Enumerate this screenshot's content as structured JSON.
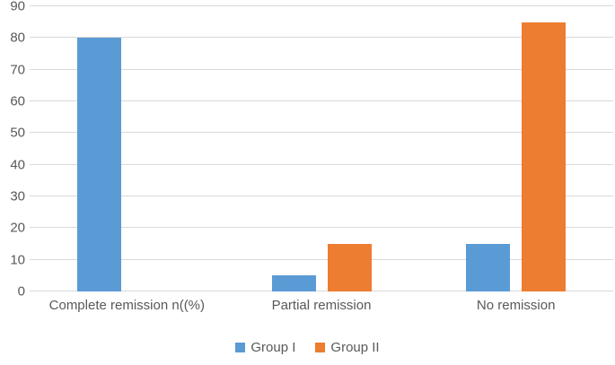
{
  "chart_data": {
    "type": "bar",
    "title": "",
    "xlabel": "",
    "ylabel": "",
    "categories": [
      "Complete remission n((%)",
      "Partial remission",
      "No remission"
    ],
    "series": [
      {
        "name": "Group I",
        "color": "#5B9BD5",
        "values": [
          80,
          5,
          15
        ]
      },
      {
        "name": "Group II",
        "color": "#ED7D31",
        "values": [
          0,
          15,
          85
        ]
      }
    ],
    "ylim": [
      0,
      90
    ],
    "ytick_interval": 10,
    "ytick_labels": [
      "0",
      "10",
      "20",
      "30",
      "40",
      "50",
      "60",
      "70",
      "80",
      "90"
    ],
    "grid": true,
    "gridline_color": "#D9D9D9",
    "axis_text_color": "#595959",
    "legend_position": "bottom",
    "background_color": "#FFFFFF"
  }
}
